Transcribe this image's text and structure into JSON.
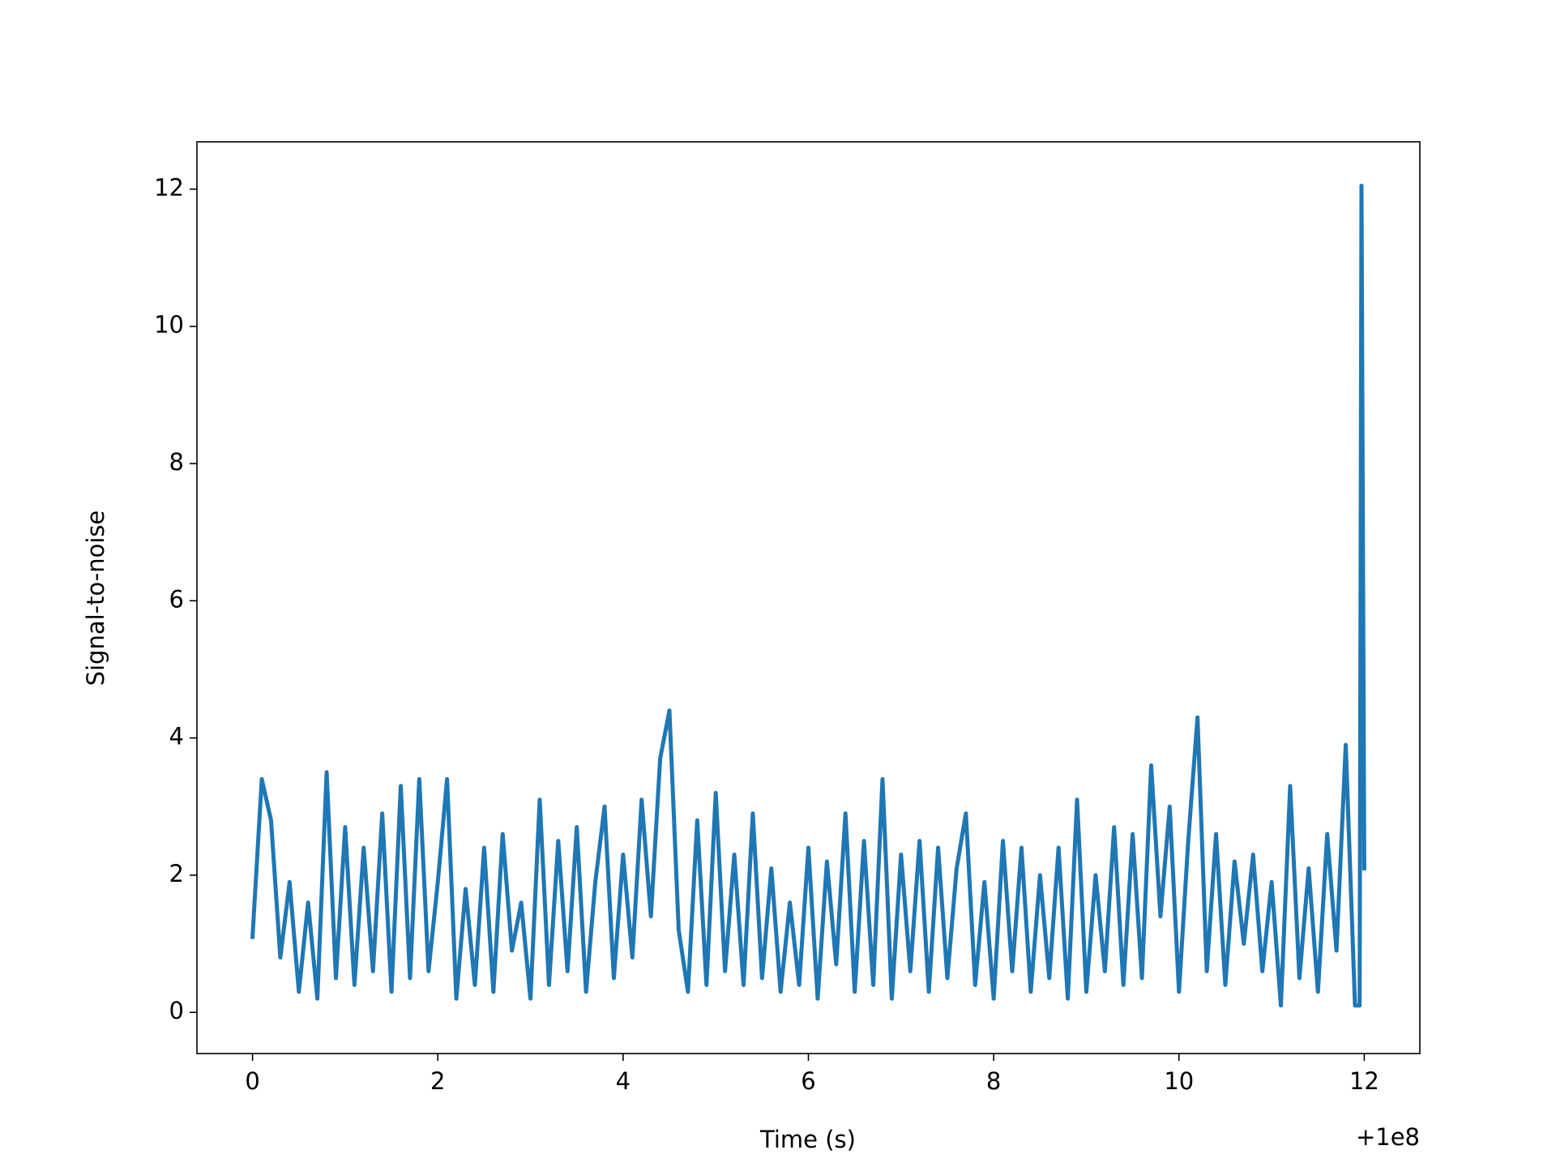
{
  "chart_data": {
    "type": "line",
    "xlabel": "Time (s)",
    "ylabel": "Signal-to-noise",
    "x_offset_label": "+1e8",
    "color": "#1f77b4",
    "x": [
      0,
      0.1,
      0.2,
      0.3,
      0.4,
      0.5,
      0.6,
      0.7,
      0.8,
      0.9,
      1,
      1.1,
      1.2,
      1.3,
      1.4,
      1.5,
      1.6,
      1.7,
      1.8,
      1.9,
      2,
      2.1,
      2.2,
      2.3,
      2.4,
      2.5,
      2.6,
      2.7,
      2.8,
      2.9,
      3,
      3.1,
      3.2,
      3.3,
      3.4,
      3.5,
      3.6,
      3.7,
      3.8,
      3.9,
      4,
      4.1,
      4.2,
      4.3,
      4.4,
      4.5,
      4.6,
      4.7,
      4.8,
      4.9,
      5,
      5.1,
      5.2,
      5.3,
      5.4,
      5.5,
      5.6,
      5.7,
      5.8,
      5.9,
      6,
      6.1,
      6.2,
      6.3,
      6.4,
      6.5,
      6.6,
      6.7,
      6.8,
      6.9,
      7,
      7.1,
      7.2,
      7.3,
      7.4,
      7.5,
      7.6,
      7.7,
      7.8,
      7.9,
      8,
      8.1,
      8.2,
      8.3,
      8.4,
      8.5,
      8.6,
      8.7,
      8.8,
      8.9,
      9,
      9.1,
      9.2,
      9.3,
      9.4,
      9.5,
      9.6,
      9.7,
      9.8,
      9.9,
      10,
      10.1,
      10.2,
      10.3,
      10.4,
      10.5,
      10.6,
      10.7,
      10.8,
      10.9,
      11,
      11.1,
      11.2,
      11.3,
      11.4,
      11.5,
      11.6,
      11.7,
      11.8,
      11.9,
      11.95,
      11.97,
      12
    ],
    "values": [
      1.1,
      3.4,
      2.8,
      0.8,
      1.9,
      0.3,
      1.6,
      0.2,
      3.5,
      0.5,
      2.7,
      0.4,
      2.4,
      0.6,
      2.9,
      0.3,
      3.3,
      0.5,
      3.4,
      0.6,
      1.9,
      3.4,
      0.2,
      1.8,
      0.4,
      2.4,
      0.3,
      2.6,
      0.9,
      1.6,
      0.2,
      3.1,
      0.4,
      2.5,
      0.6,
      2.7,
      0.3,
      1.9,
      3.0,
      0.5,
      2.3,
      0.8,
      3.1,
      1.4,
      3.7,
      4.4,
      1.2,
      0.3,
      2.8,
      0.4,
      3.2,
      0.6,
      2.3,
      0.4,
      2.9,
      0.5,
      2.1,
      0.3,
      1.6,
      0.4,
      2.4,
      0.2,
      2.2,
      0.7,
      2.9,
      0.3,
      2.5,
      0.4,
      3.4,
      0.2,
      2.3,
      0.6,
      2.5,
      0.3,
      2.4,
      0.5,
      2.1,
      2.9,
      0.4,
      1.9,
      0.2,
      2.5,
      0.6,
      2.4,
      0.3,
      2.0,
      0.5,
      2.4,
      0.2,
      3.1,
      0.3,
      2.0,
      0.6,
      2.7,
      0.4,
      2.6,
      0.5,
      3.6,
      1.4,
      3.0,
      0.3,
      2.5,
      4.3,
      0.6,
      2.6,
      0.4,
      2.2,
      1.0,
      2.3,
      0.6,
      1.9,
      0.1,
      3.3,
      0.5,
      2.1,
      0.3,
      2.6,
      0.9,
      3.9,
      0.1,
      0.1,
      12.05,
      2.1
    ],
    "xlim": [
      -0.6,
      12.6
    ],
    "ylim": [
      -0.6,
      12.69
    ],
    "xticks": [
      0,
      2,
      4,
      6,
      8,
      10,
      12
    ],
    "yticks": [
      0,
      2,
      4,
      6,
      8,
      10,
      12
    ]
  }
}
